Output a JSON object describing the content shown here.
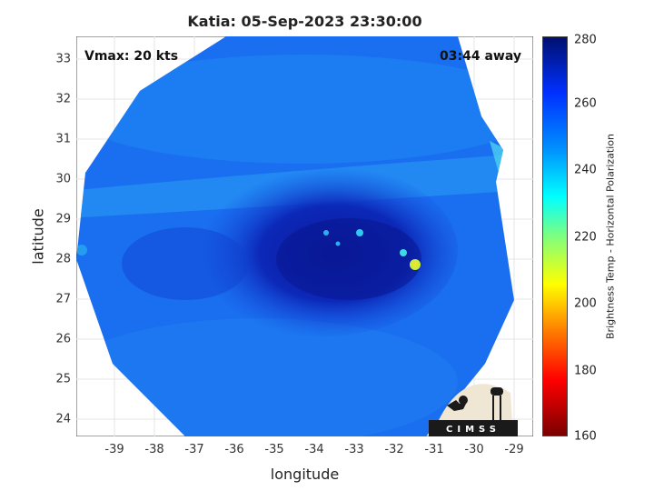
{
  "title": "Katia: 05-Sep-2023 23:30:00",
  "vmax": "Vmax: 20 kts",
  "away": "03:44 away",
  "axes": {
    "xlabel": "longitude",
    "ylabel": "latitude",
    "xticks": [
      "-39",
      "-38",
      "-37",
      "-36",
      "-35",
      "-34",
      "-33",
      "-32",
      "-31",
      "-30",
      "-29"
    ],
    "yticks": [
      "33",
      "32",
      "31",
      "30",
      "29",
      "28",
      "27",
      "26",
      "25",
      "24"
    ],
    "xlim": [
      -40,
      -28.6
    ],
    "ylim": [
      23.6,
      33.6
    ]
  },
  "colorbar": {
    "label": "Brightness Temp - Horizontal Polarization",
    "ticks": [
      "280",
      "260",
      "240",
      "220",
      "200",
      "180",
      "160"
    ],
    "range": [
      160,
      280
    ]
  },
  "logo": {
    "text": "CIMSS"
  },
  "colors": {
    "swath": "#1a6cf0",
    "core": "#0a1fa8",
    "band": "#1e8ef5"
  }
}
